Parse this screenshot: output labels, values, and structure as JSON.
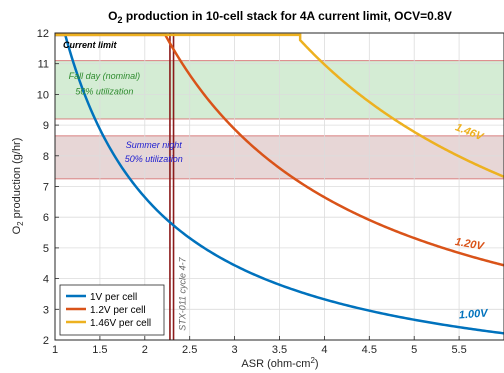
{
  "chart_data": {
    "type": "line",
    "title_main": "O",
    "title_sub": "2",
    "title_rest": " production in 10-cell stack for 4A current limit, OCV=0.8V",
    "xlabel_main": "ASR (ohm-cm",
    "xlabel_sup": "2",
    "xlabel_end": ")",
    "ylabel_main": "O",
    "ylabel_sub": "2",
    "ylabel_rest": " production (g/hr)",
    "xlim": [
      1,
      6
    ],
    "ylim": [
      2,
      12
    ],
    "xticks": [
      "1",
      "1.5",
      "2",
      "2.5",
      "3",
      "3.5",
      "4",
      "4.5",
      "5",
      "5.5"
    ],
    "yticks": [
      "2",
      "3",
      "4",
      "5",
      "6",
      "7",
      "8",
      "9",
      "10",
      "11",
      "12"
    ],
    "grid": true,
    "legend_placement": "bottom-left",
    "current_limit_value": 11.94,
    "series": [
      {
        "name": "1V per cell",
        "color": "#0072BD",
        "curve_label": "1.00V",
        "constant": 13.3,
        "limit_x": 1.11
      },
      {
        "name": "1.2V per cell",
        "color": "#D95319",
        "curve_label": "1.20V",
        "constant": 26.6,
        "limit_x": 2.23
      },
      {
        "name": "1.46V per cell",
        "color": "#EDB120",
        "curve_label": "1.46V",
        "constant": 43.9,
        "limit_x": 3.73
      }
    ],
    "bands": [
      {
        "label_line1": "Fall day (nominal)",
        "label_line2": "50% utilization",
        "y_range": [
          9.2,
          11.1
        ],
        "fill": "#9fd49f",
        "text_color": "#2e8b2e"
      },
      {
        "label_line1": "Summer night",
        "label_line2": "50% utilization",
        "y_range": [
          7.25,
          8.65
        ],
        "fill": "#c9a3a3",
        "text_color": "#2020d0"
      }
    ],
    "annotations": {
      "current_limit": "Current limit",
      "stx_label": "STX-011 cycle 4-7",
      "stx_x": 2.3
    }
  }
}
